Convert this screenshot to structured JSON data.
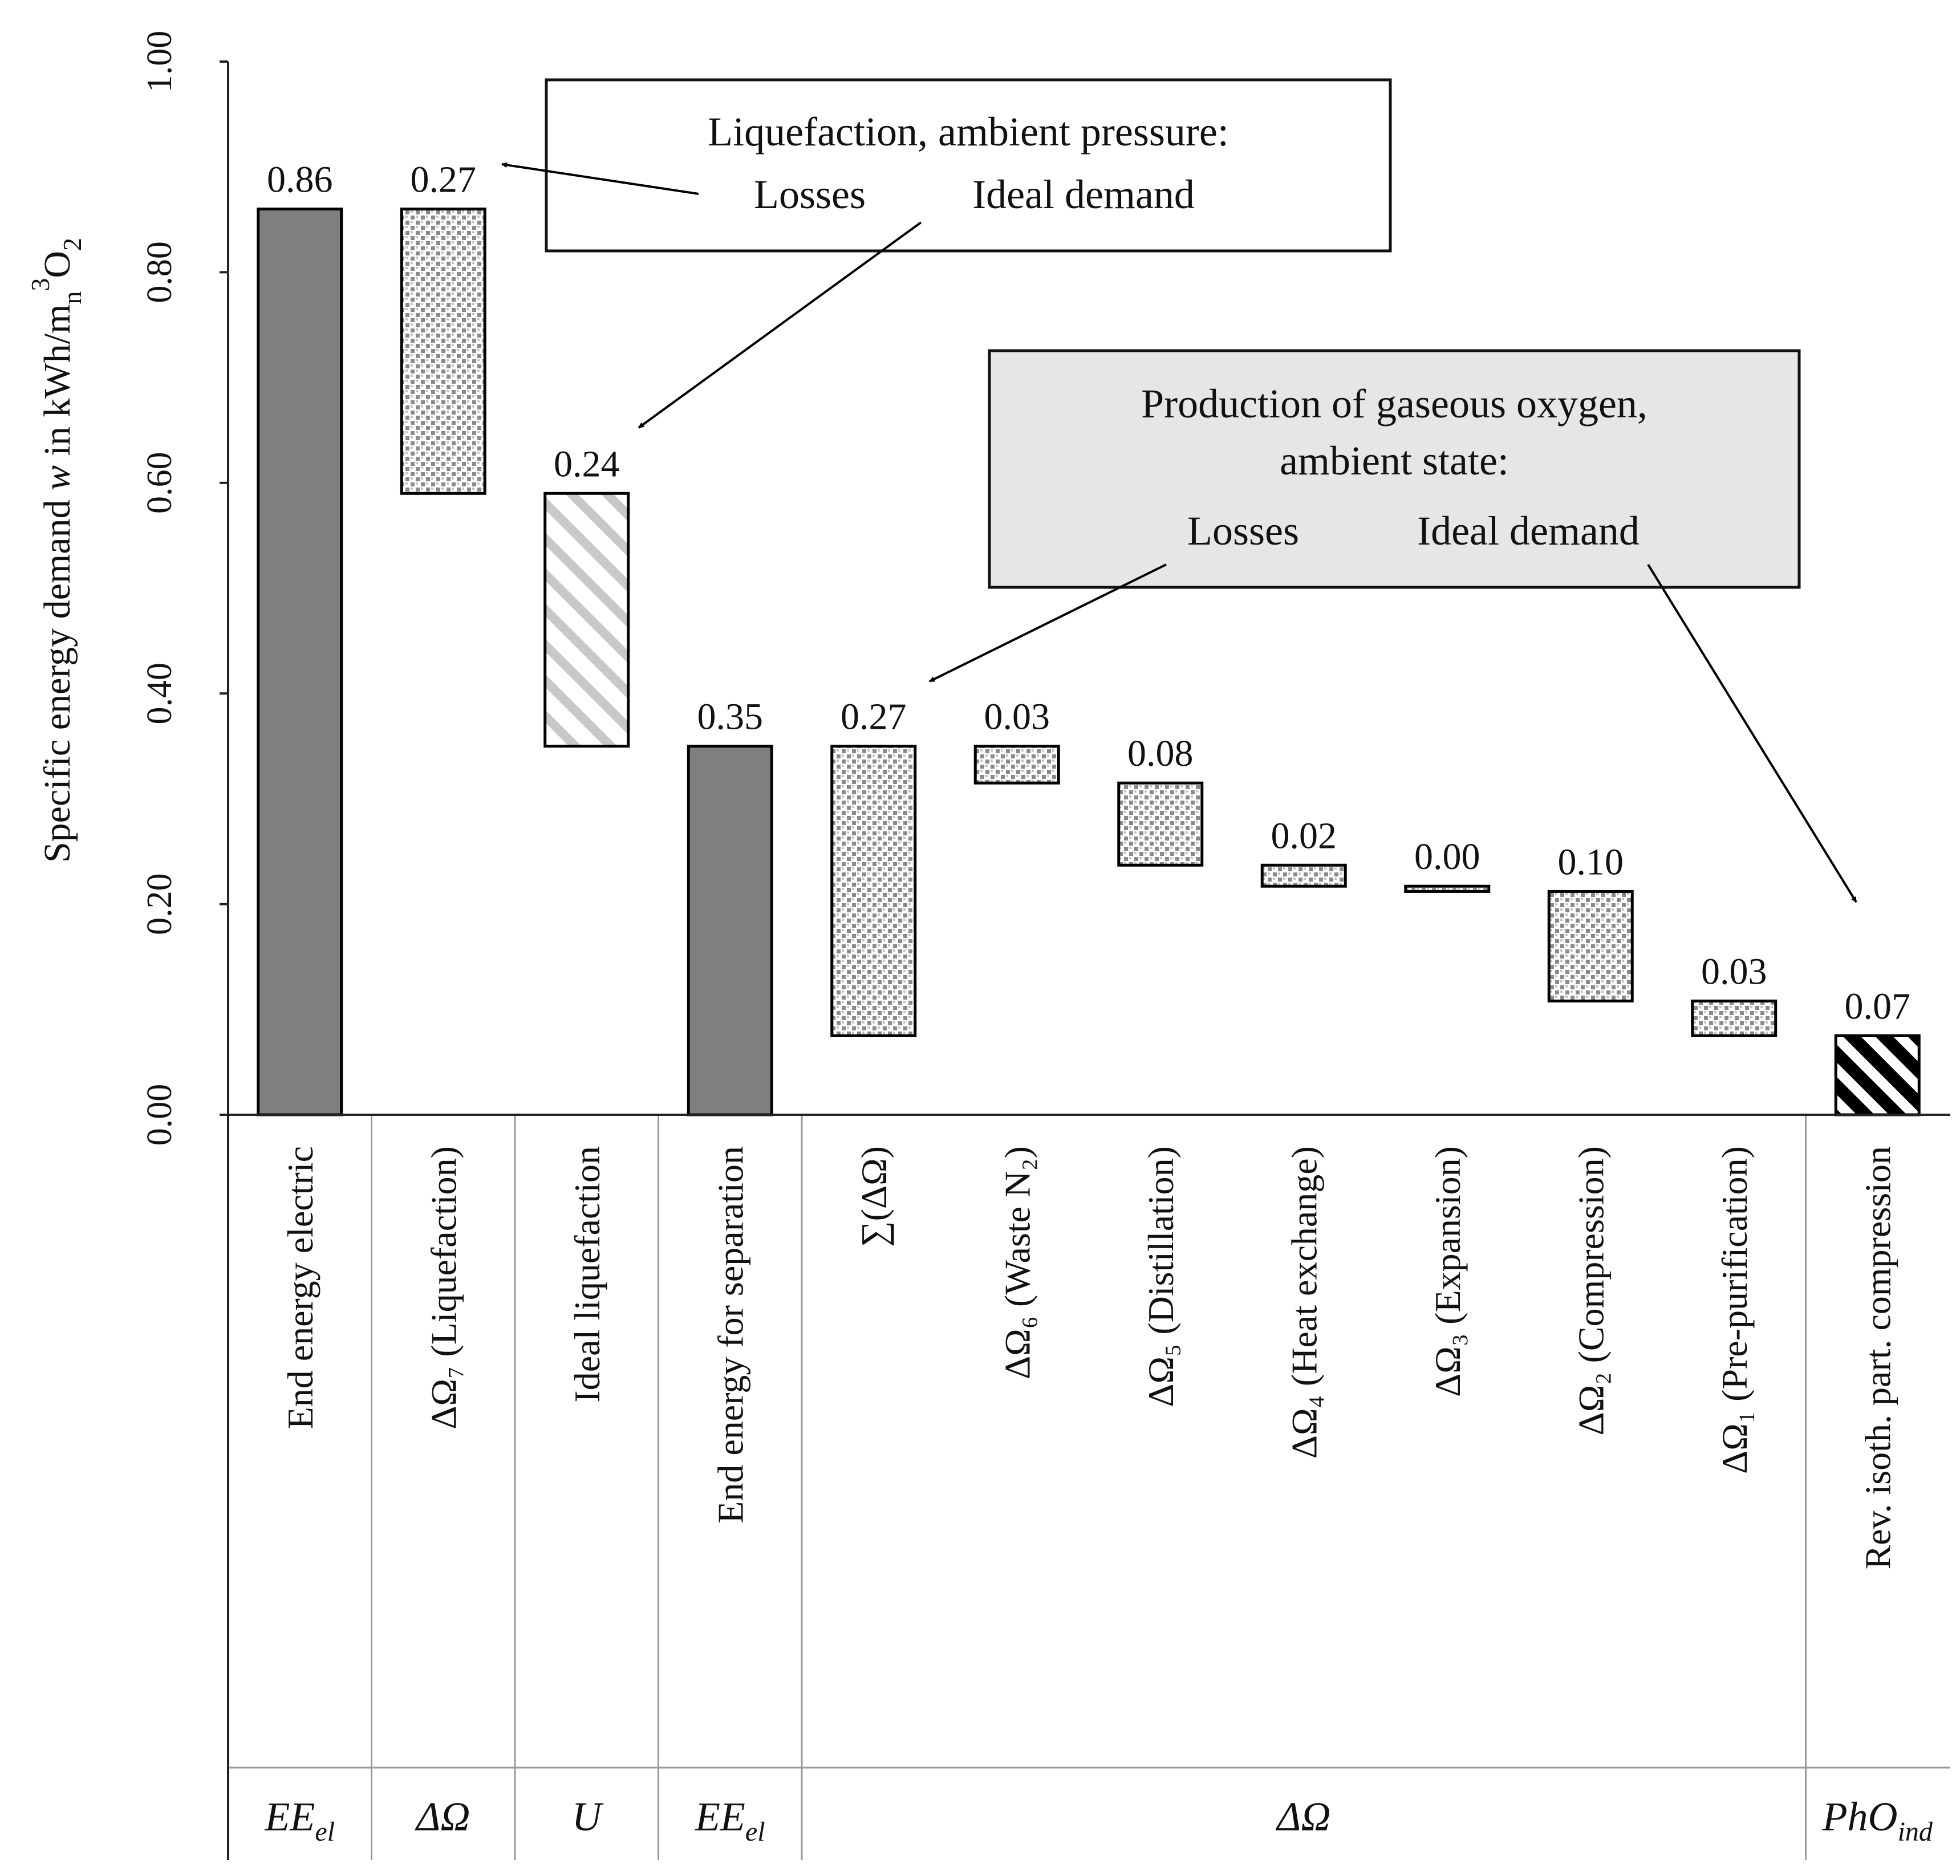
{
  "chart_data": {
    "type": "waterfall",
    "ylabel": "Specific energy demand w in kWh/m",
    "ylabel_parts": {
      "main": "Specific energy demand ",
      "var": "w",
      "units": " in kWh/m",
      "sub_n": "n",
      "sup": "3",
      "o": "O",
      "sub_2": "2"
    },
    "ylim": [
      0,
      1.0
    ],
    "yticks": [
      "0.00",
      "0.20",
      "0.40",
      "0.60",
      "0.80",
      "1.00"
    ],
    "ytick_values": [
      0,
      0.2,
      0.4,
      0.6,
      0.8,
      1.0
    ],
    "bars": [
      {
        "category": "End energy electric",
        "bottom": 0.0,
        "top": 0.86,
        "label": "0.86",
        "style": "solid"
      },
      {
        "category": "ΔΩ₇ (Liquefaction)",
        "bottom": 0.59,
        "top": 0.86,
        "label": "0.27",
        "style": "dots"
      },
      {
        "category": "Ideal liquefaction",
        "bottom": 0.35,
        "top": 0.59,
        "label": "0.24",
        "style": "diag-light"
      },
      {
        "category": "End energy for separation",
        "bottom": 0.0,
        "top": 0.35,
        "label": "0.35",
        "style": "solid"
      },
      {
        "category": "∑(ΔΩ)",
        "bottom": 0.075,
        "top": 0.35,
        "label": "0.27",
        "style": "dots"
      },
      {
        "category": "ΔΩ₆ (Waste N₂)",
        "bottom": 0.315,
        "top": 0.35,
        "label": "0.03",
        "style": "dots"
      },
      {
        "category": "ΔΩ₅ (Distillation)",
        "bottom": 0.237,
        "top": 0.315,
        "label": "0.08",
        "style": "dots"
      },
      {
        "category": "ΔΩ₄ (Heat exchange)",
        "bottom": 0.217,
        "top": 0.237,
        "label": "0.02",
        "style": "dots"
      },
      {
        "category": "ΔΩ₃ (Expansion)",
        "bottom": 0.212,
        "top": 0.217,
        "label": "0.00",
        "style": "dots"
      },
      {
        "category": "ΔΩ₂ (Compression)",
        "bottom": 0.108,
        "top": 0.212,
        "label": "0.10",
        "style": "dots"
      },
      {
        "category": "ΔΩ₁ (Pre-purification)",
        "bottom": 0.075,
        "top": 0.108,
        "label": "0.03",
        "style": "dots"
      },
      {
        "category": "Rev. isoth. part. compression",
        "bottom": 0.0,
        "top": 0.075,
        "label": "0.07",
        "style": "diag-dark"
      }
    ],
    "groups": [
      {
        "main": "EE",
        "sub": "el",
        "from": 0,
        "to": 0
      },
      {
        "main": "ΔΩ",
        "sub": "",
        "from": 1,
        "to": 1
      },
      {
        "main": "U",
        "sub": "",
        "from": 2,
        "to": 2
      },
      {
        "main": "EE",
        "sub": "el",
        "from": 3,
        "to": 3
      },
      {
        "main": "ΔΩ",
        "sub": "",
        "from": 4,
        "to": 10
      },
      {
        "main": "PhO",
        "sub": "ind",
        "from": 11,
        "to": 11
      }
    ],
    "annotations": [
      {
        "title": "Liquefaction, ambient pressure:",
        "left_label": "Losses",
        "right_label": "Ideal demand",
        "shaded": false
      },
      {
        "title_1": "Production of gaseous oxygen,",
        "title_2": "ambient state:",
        "left_label": "Losses",
        "right_label": "Ideal demand",
        "shaded": true
      }
    ]
  }
}
